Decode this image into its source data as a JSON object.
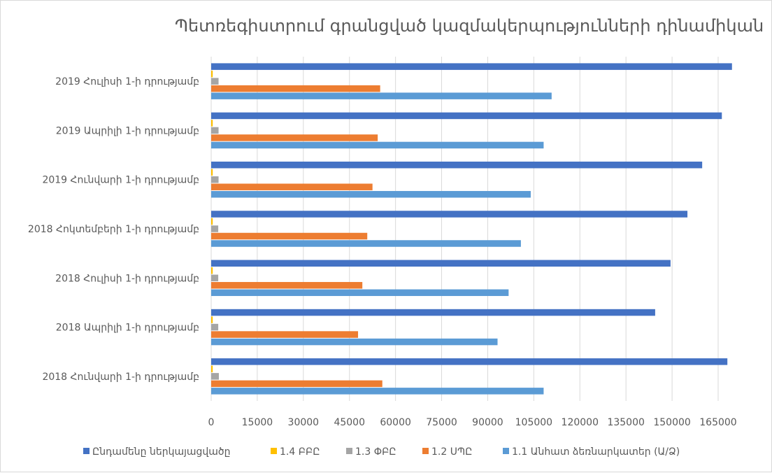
{
  "chart_data": {
    "type": "bar",
    "orientation": "horizontal",
    "title": "Պետռեգիստրում գրանցված կազմակերպությունների դինամիկան",
    "categories": [
      "2018 Հունվարի 1-ի դրությամբ",
      "2018 Ապրիլի 1-ի դրությամբ",
      "2018 Հուլիսի 1-ի դրությամբ",
      "2018 Հոկտեմբերի 1-ի դրությամբ",
      "2019 Հունվարի 1-ի դրությամբ",
      "2019 Ապրիլի 1-ի դրությամբ",
      "2019 Հուլիսի 1-ի դրությամբ"
    ],
    "series": [
      {
        "name": "Ընդամենը ներկայացվածը",
        "color": "#4472c4",
        "values": [
          168000,
          144500,
          149500,
          155000,
          159800,
          166200,
          169500
        ]
      },
      {
        "name": "1.4 ԲԲԸ",
        "color": "#ffc000",
        "values": [
          500,
          500,
          500,
          500,
          500,
          500,
          500
        ]
      },
      {
        "name": "1.3 ՓԲԸ",
        "color": "#a5a5a5",
        "values": [
          2500,
          2300,
          2300,
          2300,
          2400,
          2400,
          2400
        ]
      },
      {
        "name": "1.2 ՍՊԸ",
        "color": "#ed7d31",
        "values": [
          55700,
          47800,
          49200,
          50800,
          52500,
          54200,
          55000
        ]
      },
      {
        "name": "1.1 Անհատ ձեռնարկատեր (Ա/Ձ)",
        "color": "#5b9bd5",
        "values": [
          108200,
          93200,
          96800,
          100800,
          104000,
          108200,
          110800
        ]
      }
    ],
    "xlim": [
      0,
      165000
    ],
    "xticks": [
      0,
      15000,
      30000,
      45000,
      60000,
      75000,
      90000,
      105000,
      120000,
      135000,
      150000,
      165000
    ],
    "xlabel": "",
    "ylabel": "",
    "grid": "vertical",
    "legend": "bottom"
  }
}
